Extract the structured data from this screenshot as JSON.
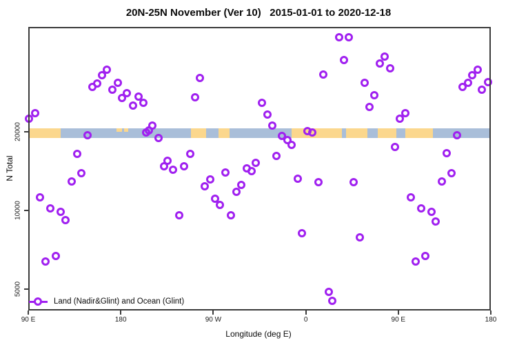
{
  "title": "20N-25N November (Ver 10)   2015-01-01 to 2020-12-18",
  "axes": {
    "x": {
      "label": "Longitude (deg E)",
      "ticks": [
        {
          "lon": 90,
          "label": "90 E"
        },
        {
          "lon": 180,
          "label": "180"
        },
        {
          "lon": 270,
          "label": "90 W"
        },
        {
          "lon": 360,
          "label": "0"
        },
        {
          "lon": 450,
          "label": "90 E"
        },
        {
          "lon": 540,
          "label": "180"
        }
      ]
    },
    "y": {
      "label": "N Total",
      "scale": "log",
      "ticks": [
        {
          "value": 20000,
          "label": "20000"
        },
        {
          "value": 10000,
          "label": "10000"
        },
        {
          "value": 5000,
          "label": "5000"
        }
      ],
      "range": [
        4100,
        50500
      ]
    }
  },
  "legend": {
    "label": "Land (Nadir&Glint) and Ocean (Glint)"
  },
  "colors": {
    "marker": "#A020F0",
    "ocean": "#A9BED9",
    "land": "#FBD78D",
    "axis": "#3b3b3b"
  },
  "map_band": {
    "description": "world map strip of the 20N-25N latitude band drawn near N=19500",
    "ocean_span_lon": [
      90,
      540
    ],
    "land_segments_lon": [
      [
        90,
        121.5
      ],
      [
        248,
        263
      ],
      [
        275,
        286
      ],
      [
        346,
        395
      ],
      [
        399,
        420
      ],
      [
        430,
        448
      ],
      [
        457,
        484
      ]
    ],
    "islet_segments_lon": [
      [
        176,
        181
      ],
      [
        183,
        187
      ]
    ]
  },
  "chart_data": {
    "type": "scatter",
    "title": "20N-25N November (Ver 10)   2015-01-01 to 2020-12-18",
    "xlabel": "Longitude (deg E)",
    "ylabel": "N Total",
    "x_axis_note": "longitude increases eastward from 90E, wrapping through 180, 90W, 0, 90E to 180 (axis units 90..540 deg E)",
    "yscale": "log",
    "ylim": [
      4100,
      50500
    ],
    "xlim": [
      90,
      540
    ],
    "grid": false,
    "legend_position": "bottom-left inside plot",
    "series": [
      {
        "name": "Land (Nadir&Glint) and Ocean (Glint)",
        "marker": "open-circle",
        "points": [
          [
            166.5,
            34500
          ],
          [
            161.8,
            32800
          ],
          [
            157.1,
            30500
          ],
          [
            152.4,
            29600
          ],
          [
            177.2,
            30700
          ],
          [
            171.8,
            28900
          ],
          [
            185.9,
            28000
          ],
          [
            181.2,
            26900
          ],
          [
            197.3,
            27200
          ],
          [
            191.9,
            25100
          ],
          [
            202.0,
            25800
          ],
          [
            96.7,
            23500
          ],
          [
            90.7,
            22400
          ],
          [
            210.7,
            21100
          ],
          [
            207.4,
            20200
          ],
          [
            257.0,
            32000
          ],
          [
            252.3,
            27000
          ],
          [
            317.4,
            25800
          ],
          [
            322.7,
            23200
          ],
          [
            327.4,
            21100
          ],
          [
            377.1,
            33000
          ],
          [
            392.5,
            45800
          ],
          [
            401.9,
            45800
          ],
          [
            397.2,
            37500
          ],
          [
            436.8,
            38700
          ],
          [
            432.1,
            36400
          ],
          [
            442.1,
            34900
          ],
          [
            417.3,
            30700
          ],
          [
            426.7,
            27500
          ],
          [
            422.0,
            24800
          ],
          [
            456.9,
            23500
          ],
          [
            451.5,
            22400
          ],
          [
            521.9,
            32800
          ],
          [
            527.3,
            34500
          ],
          [
            517.9,
            30700
          ],
          [
            512.5,
            29600
          ],
          [
            537.3,
            30900
          ],
          [
            531.3,
            28900
          ],
          [
            147.7,
            19400
          ],
          [
            204.7,
            19900
          ],
          [
            216.8,
            18900
          ],
          [
            137.6,
            16400
          ],
          [
            141.6,
            13900
          ],
          [
            132.3,
            12900
          ],
          [
            225.5,
            15500
          ],
          [
            222.1,
            14700
          ],
          [
            230.8,
            14300
          ],
          [
            101.4,
            11200
          ],
          [
            111.5,
            10200
          ],
          [
            121.5,
            9900
          ],
          [
            126.2,
            9200
          ],
          [
            236.9,
            9600
          ],
          [
            336.8,
            19200
          ],
          [
            342.2,
            18600
          ],
          [
            346.2,
            17800
          ],
          [
            361.6,
            20100
          ],
          [
            366.3,
            19900
          ],
          [
            331.5,
            16100
          ],
          [
            247.6,
            16400
          ],
          [
            241.6,
            14700
          ],
          [
            311.3,
            15200
          ],
          [
            302.6,
            14500
          ],
          [
            307.3,
            14100
          ],
          [
            281.8,
            14000
          ],
          [
            267.1,
            13100
          ],
          [
            261.7,
            12400
          ],
          [
            297.2,
            12500
          ],
          [
            292.5,
            11800
          ],
          [
            271.8,
            11100
          ],
          [
            276.4,
            10500
          ],
          [
            287.2,
            9600
          ],
          [
            352.2,
            13200
          ],
          [
            372.4,
            12800
          ],
          [
            507.1,
            19400
          ],
          [
            446.8,
            17500
          ],
          [
            497.1,
            16500
          ],
          [
            501.8,
            13900
          ],
          [
            492.4,
            12900
          ],
          [
            406.6,
            12800
          ],
          [
            462.2,
            11200
          ],
          [
            472.3,
            10200
          ],
          [
            482.3,
            9900
          ],
          [
            486.4,
            9100
          ],
          [
            106.8,
            6400
          ],
          [
            116.8,
            6700
          ],
          [
            356.2,
            8200
          ],
          [
            412.6,
            7900
          ],
          [
            466.9,
            6400
          ],
          [
            476.3,
            6700
          ],
          [
            382.4,
            4890
          ],
          [
            385.8,
            4520
          ]
        ]
      }
    ]
  }
}
